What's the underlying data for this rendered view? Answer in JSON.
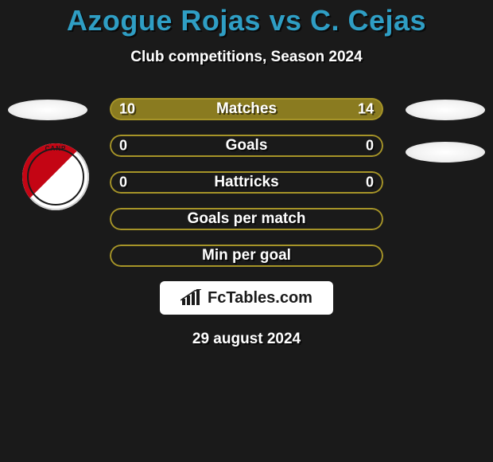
{
  "title": "Azogue Rojas vs C. Cejas",
  "subtitle": "Club competitions, Season 2024",
  "date": "29 august 2024",
  "brand": {
    "label": "FcTables.com"
  },
  "colors": {
    "title": "#2f9ec4",
    "left_fill": "#8a7b20",
    "right_fill": "#8a7b20",
    "bar_empty": "#1a1a1a",
    "bar_border": "#a69428",
    "background": "#1a1a1a",
    "club_sash": "#c40514"
  },
  "stats": [
    {
      "label": "Matches",
      "left_val": "10",
      "right_val": "14",
      "left_pct": 40,
      "right_pct": 60,
      "show_vals": true
    },
    {
      "label": "Goals",
      "left_val": "0",
      "right_val": "0",
      "left_pct": 0,
      "right_pct": 0,
      "show_vals": true
    },
    {
      "label": "Hattricks",
      "left_val": "0",
      "right_val": "0",
      "left_pct": 0,
      "right_pct": 0,
      "show_vals": true
    },
    {
      "label": "Goals per match",
      "left_val": "",
      "right_val": "",
      "left_pct": 0,
      "right_pct": 0,
      "show_vals": false
    },
    {
      "label": "Min per goal",
      "left_val": "",
      "right_val": "",
      "left_pct": 0,
      "right_pct": 0,
      "show_vals": false
    }
  ],
  "club_badge": {
    "text": "CANP"
  }
}
